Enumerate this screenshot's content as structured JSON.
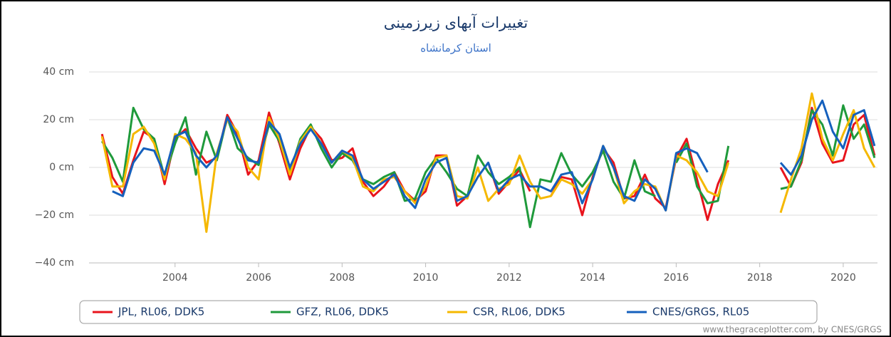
{
  "chart_data": {
    "type": "line",
    "title": "تغییرات آبهای زیرزمینی",
    "subtitle": "استان کرمانشاه",
    "credit": "www.thegraceplotter.com, by CNES/GRGS",
    "x": [
      2002.25,
      2002.5,
      2002.75,
      2003,
      2003.25,
      2003.5,
      2003.75,
      2004,
      2004.25,
      2004.5,
      2004.75,
      2005,
      2005.25,
      2005.5,
      2005.75,
      2006,
      2006.25,
      2006.5,
      2006.75,
      2007,
      2007.25,
      2007.5,
      2007.75,
      2008,
      2008.25,
      2008.5,
      2008.75,
      2009,
      2009.25,
      2009.5,
      2009.75,
      2010,
      2010.25,
      2010.5,
      2010.75,
      2011,
      2011.25,
      2011.5,
      2011.75,
      2012,
      2012.25,
      2012.5,
      2012.75,
      2013,
      2013.25,
      2013.5,
      2013.75,
      2014,
      2014.25,
      2014.5,
      2014.75,
      2015,
      2015.25,
      2015.5,
      2015.75,
      2016,
      2016.25,
      2016.5,
      2016.75,
      2017,
      2017.25,
      2017.5,
      2017.75,
      2018,
      2018.25,
      2018.5,
      2018.75,
      2019,
      2019.25,
      2019.5,
      2019.75,
      2020,
      2020.25,
      2020.5,
      2020.75
    ],
    "series": [
      {
        "name": "JPL, RL06, DDK5",
        "color": "#e8141c",
        "values": [
          14,
          -4,
          -11,
          3,
          15,
          12,
          -7,
          12,
          16,
          8,
          2,
          4,
          22,
          14,
          -3,
          3,
          23,
          10,
          -5,
          8,
          17,
          12,
          3,
          4,
          8,
          -6,
          -12,
          -8,
          -2,
          -10,
          -14,
          -10,
          5,
          5,
          -16,
          -12,
          null,
          2,
          -11,
          -6,
          -1,
          -10,
          null,
          -12,
          -4,
          -5,
          -20,
          -4,
          8,
          2,
          -13,
          -12,
          -3,
          -13,
          -17,
          4,
          12,
          -5,
          -22,
          -7,
          3,
          null,
          null,
          null,
          null,
          0,
          -8,
          2,
          25,
          10,
          2,
          3,
          18,
          22,
          5
        ]
      },
      {
        "name": "GFZ, RL06, DDK5",
        "color": "#1f9a3b",
        "values": [
          11,
          4,
          -6,
          25,
          16,
          12,
          -4,
          10,
          21,
          -3,
          15,
          3,
          21,
          8,
          4,
          1,
          18,
          11,
          -2,
          12,
          18,
          8,
          0,
          6,
          3,
          -5,
          -7,
          -4,
          -2,
          -14,
          -13,
          -2,
          4,
          -2,
          -9,
          -12,
          5,
          -2,
          -7,
          -4,
          0,
          -25,
          -5,
          -6,
          6,
          -3,
          -8,
          -2,
          7,
          -6,
          -13,
          3,
          -10,
          -12,
          null,
          2,
          10,
          -8,
          -15,
          -14,
          9,
          null,
          null,
          null,
          null,
          -9,
          -8,
          3,
          24,
          18,
          5,
          26,
          12,
          18,
          4
        ]
      },
      {
        "name": "CSR, RL06, DDK5",
        "color": "#f5b800",
        "values": [
          13,
          -8,
          -8,
          14,
          17,
          10,
          -5,
          14,
          12,
          6,
          -27,
          6,
          20,
          15,
          0,
          -5,
          21,
          12,
          -3,
          11,
          17,
          10,
          2,
          7,
          4,
          -8,
          -10,
          -5,
          -4,
          -10,
          -15,
          -8,
          4,
          5,
          -12,
          -13,
          0,
          -14,
          -9,
          -7,
          5,
          -6,
          -13,
          -12,
          -5,
          -7,
          -11,
          -5,
          9,
          0,
          -15,
          -10,
          -7,
          -8,
          -18,
          5,
          3,
          -2,
          -10,
          -12,
          2,
          null,
          null,
          null,
          null,
          -19,
          -5,
          8,
          31,
          12,
          3,
          14,
          24,
          8,
          0
        ]
      },
      {
        "name": "CNES/GRGS, RL05",
        "color": "#1560bd",
        "values": [
          null,
          -10,
          -12,
          2,
          8,
          7,
          -3,
          13,
          15,
          5,
          0,
          5,
          21,
          12,
          3,
          2,
          19,
          14,
          0,
          10,
          16,
          10,
          2,
          7,
          5,
          -5,
          -9,
          -6,
          -3,
          -12,
          -17,
          -5,
          2,
          4,
          -14,
          -12,
          -4,
          2,
          -10,
          -5,
          -3,
          -8,
          -8,
          -10,
          -3,
          -2,
          -15,
          -5,
          9,
          0,
          -12,
          -14,
          -5,
          -9,
          -18,
          6,
          8,
          6,
          -2,
          null,
          null,
          null,
          null,
          null,
          null,
          2,
          -3,
          5,
          20,
          28,
          15,
          8,
          22,
          24,
          9
        ]
      }
    ],
    "xlim": [
      2001.94,
      2020.82
    ],
    "xticks": [
      2004,
      2006,
      2008,
      2010,
      2012,
      2014,
      2016,
      2018,
      2020
    ],
    "ylim": [
      -40,
      40
    ],
    "yticks": [
      {
        "value": -40,
        "label": "−40 cm"
      },
      {
        "value": -20,
        "label": "−20 cm"
      },
      {
        "value": 0,
        "label": "0 cm"
      },
      {
        "value": 20,
        "label": "20 cm"
      },
      {
        "value": 40,
        "label": "40 cm"
      }
    ],
    "grid": true
  }
}
